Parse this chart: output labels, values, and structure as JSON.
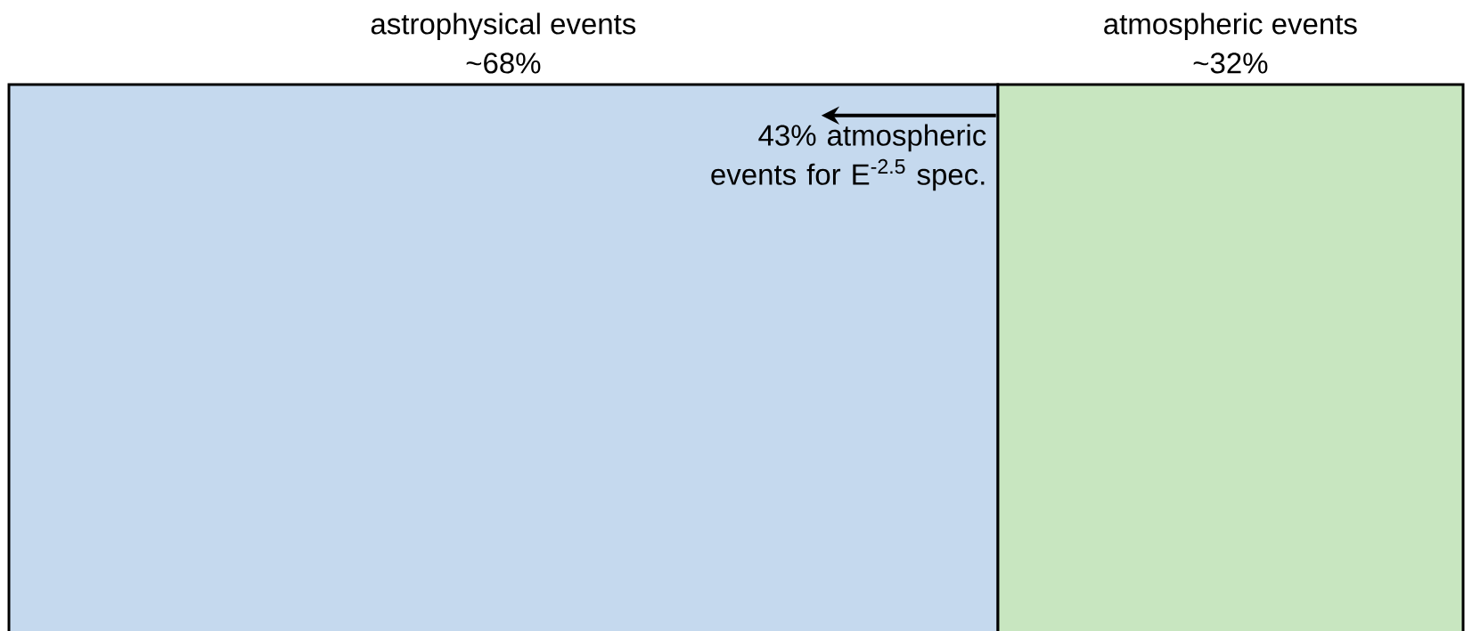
{
  "chart_data": {
    "type": "bar",
    "orientation": "horizontal",
    "stacked": true,
    "categories": [
      null
    ],
    "xlim": [
      0,
      100
    ],
    "series": [
      {
        "name": "astrophysical events",
        "color": "#c5d9ee",
        "values": [
          68
        ],
        "value_labels": [
          "~68%"
        ]
      },
      {
        "name": "atmospheric events",
        "color": "#c8e6c0",
        "values": [
          32
        ],
        "value_labels": [
          "~32%"
        ]
      }
    ],
    "annotations": [
      {
        "text": "43% atmospheric events for E$^{-2.5}$ spec.",
        "x": 68
      }
    ]
  }
}
